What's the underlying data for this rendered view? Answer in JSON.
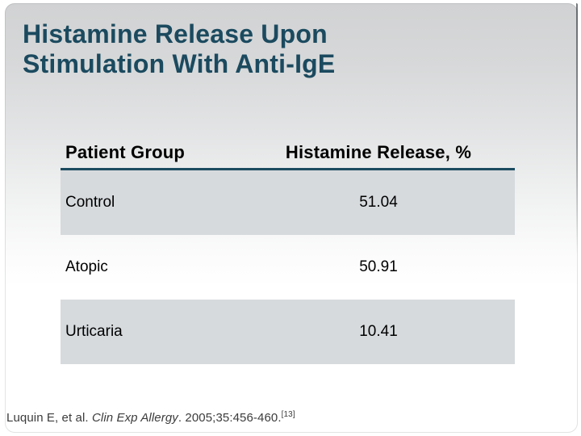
{
  "title": {
    "full": "Histamine Release Upon Stimulation With Anti-IgE",
    "lines": [
      "Histamine Release Upon",
      "Stimulation With Anti-IgE"
    ]
  },
  "table": {
    "columns": [
      "Patient Group",
      "Histamine Release, %"
    ],
    "rows": [
      {
        "group": "Control",
        "value": "51.04"
      },
      {
        "group": "Atopic",
        "value": "50.91"
      },
      {
        "group": "Urticaria",
        "value": "10.41"
      }
    ]
  },
  "citation": {
    "prefix": "Luquin E, et al. ",
    "journal": "Clin Exp Allergy",
    "suffix": ". 2005;35:456-460.",
    "ref": "[13]"
  },
  "colors": {
    "title_text": "#1b4a5f",
    "header_rule": "#1c4b60",
    "row_shade": "#d6dadd",
    "background_top": "#d1d2d3",
    "citation_text": "#3c3c3c"
  },
  "chart_data": {
    "type": "table",
    "title": "Histamine Release Upon Stimulation With Anti-IgE",
    "columns": [
      "Patient Group",
      "Histamine Release, %"
    ],
    "rows": [
      [
        "Control",
        51.04
      ],
      [
        "Atopic",
        50.91
      ],
      [
        "Urticaria",
        10.41
      ]
    ]
  }
}
